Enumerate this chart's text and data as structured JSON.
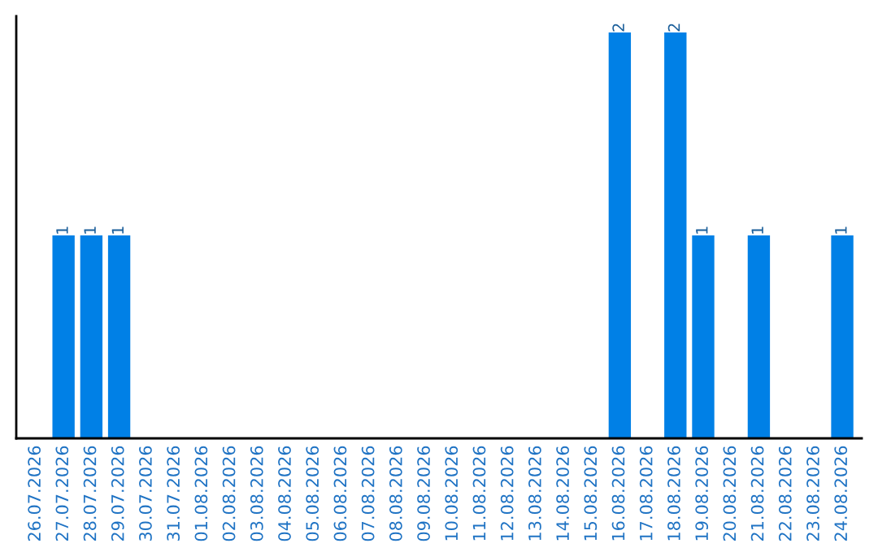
{
  "chart_data": {
    "type": "bar",
    "categories": [
      "26.07.2026",
      "27.07.2026",
      "28.07.2026",
      "29.07.2026",
      "30.07.2026",
      "31.07.2026",
      "01.08.2026",
      "02.08.2026",
      "03.08.2026",
      "04.08.2026",
      "05.08.2026",
      "06.08.2026",
      "07.08.2026",
      "08.08.2026",
      "09.08.2026",
      "10.08.2026",
      "11.08.2026",
      "12.08.2026",
      "13.08.2026",
      "14.08.2026",
      "15.08.2026",
      "16.08.2026",
      "17.08.2026",
      "18.08.2026",
      "19.08.2026",
      "20.08.2026",
      "21.08.2026",
      "22.08.2026",
      "23.08.2026",
      "24.08.2026"
    ],
    "values": [
      0,
      1,
      1,
      1,
      0,
      0,
      0,
      0,
      0,
      0,
      0,
      0,
      0,
      0,
      0,
      0,
      0,
      0,
      0,
      0,
      0,
      2,
      0,
      2,
      1,
      0,
      1,
      0,
      0,
      1
    ],
    "value_labels": [
      null,
      "1",
      "1",
      "1",
      null,
      null,
      null,
      null,
      null,
      null,
      null,
      null,
      null,
      null,
      null,
      null,
      null,
      null,
      null,
      null,
      null,
      "2",
      null,
      "2",
      "1",
      null,
      "1",
      null,
      null,
      "1"
    ],
    "color": "#0080e6",
    "ylim": [
      0,
      2.08
    ],
    "tick_labels": "x",
    "grid": false,
    "legend": false
  }
}
